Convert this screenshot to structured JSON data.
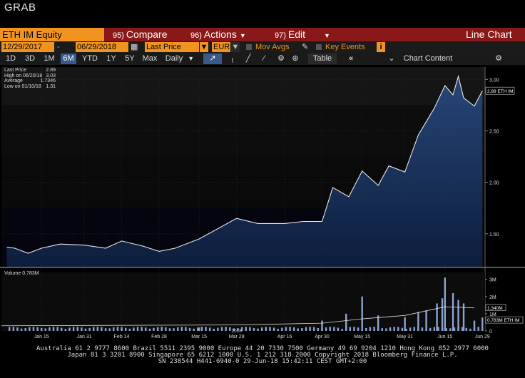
{
  "window": {
    "title": "GRAB"
  },
  "toolbar": {
    "ticker": "ETH IM Equity",
    "compare_num": "95)",
    "compare": "Compare",
    "actions_num": "96)",
    "actions": "Actions",
    "edit_num": "97)",
    "edit": "Edit",
    "chart_type": "Line Chart"
  },
  "settings": {
    "start_date": "12/29/2017",
    "end_date": "06/29/2018",
    "field": "Last Price",
    "currency": "EUR",
    "mov_avgs": "Mov Avgs",
    "key_events": "Key Events"
  },
  "period_buttons": [
    "1D",
    "3D",
    "1M",
    "6M",
    "YTD",
    "1Y",
    "5Y",
    "Max"
  ],
  "active_period": "6M",
  "frequency": "Daily",
  "table_label": "Table",
  "chart_content": "Chart Content",
  "legend": {
    "last_price_label": "Last Price",
    "last_price": "2.89",
    "high_label": "High on 06/20/18",
    "high": "3.03",
    "average_label": "Average",
    "average": "1.7346",
    "low_label": "Low on 01/10/18",
    "low": "1.31"
  },
  "volume_legend": "Volume 0.783M",
  "colors": {
    "accent_orange": "#f0941f",
    "menu_red": "#8b1818",
    "area_fill": "#1a3a6e",
    "active_button": "#3a5a8c"
  },
  "chart_data": {
    "type": "area",
    "price": {
      "x": [
        "Jan 2",
        "Jan 5",
        "Jan 10",
        "Jan 15",
        "Jan 22",
        "Jan 31",
        "Feb 8",
        "Feb 14",
        "Feb 22",
        "Feb 28",
        "Mar 6",
        "Mar 15",
        "Mar 22",
        "Mar 29",
        "Apr 6",
        "Apr 16",
        "Apr 23",
        "Apr 30",
        "May 4",
        "May 10",
        "May 15",
        "May 21",
        "May 25",
        "May 31",
        "Jun 5",
        "Jun 11",
        "Jun 15",
        "Jun 18",
        "Jun 20",
        "Jun 22",
        "Jun 26",
        "Jun 29"
      ],
      "y": [
        1.37,
        1.36,
        1.31,
        1.36,
        1.4,
        1.39,
        1.36,
        1.43,
        1.38,
        1.33,
        1.36,
        1.45,
        1.55,
        1.65,
        1.6,
        1.6,
        1.62,
        1.62,
        1.95,
        1.86,
        2.11,
        1.97,
        2.16,
        2.1,
        2.46,
        2.72,
        2.94,
        2.85,
        3.03,
        2.82,
        2.74,
        2.89
      ],
      "ylim": [
        1.31,
        3.03
      ],
      "y_ticks": [
        "1.50",
        "2.00",
        "2.50",
        "3.00"
      ],
      "last_label": "2.89 ETH IM"
    },
    "volume": {
      "x": [
        "Jan 15",
        "Feb 14",
        "Mar 15",
        "Apr 30",
        "May 9",
        "May 15",
        "May 21",
        "May 31",
        "Jun 5",
        "Jun 8",
        "Jun 12",
        "Jun 14",
        "Jun 15",
        "Jun 18",
        "Jun 20",
        "Jun 22",
        "Jun 26",
        "Jun 29"
      ],
      "y": [
        0.18,
        0.15,
        0.2,
        0.6,
        1.0,
        2.0,
        0.9,
        0.8,
        1.1,
        1.2,
        1.6,
        1.9,
        3.1,
        2.2,
        1.8,
        1.6,
        0.6,
        0.78
      ],
      "y_ticks": [
        "0",
        "1M",
        "2M",
        "3M"
      ],
      "avg_label": "1.340M",
      "last_label": "0.783M ETH IM"
    },
    "x_ticks": [
      "Jan 15",
      "Jan 31",
      "Feb 14",
      "Feb 28",
      "Mar 15",
      "Mar 29",
      "Apr 16",
      "Apr 30",
      "May 15",
      "May 31",
      "Jun 15",
      "Jun 29"
    ],
    "x_year": "2018"
  },
  "footer": {
    "line1": "Australia 61 2 9777 8600 Brazil 5511 2395 9000 Europe 44 20 7330 7500 Germany 49 69 9204 1210 Hong Kong 852 2977 6000",
    "line2": "Japan 81 3 3201 8900          Singapore 65 6212 1000          U.S. 1 212 318 2000                     Copyright 2018 Bloomberg Finance L.P.",
    "line3": "SN 238544 H441-6940-0 29-Jun-18 15:42:11 CEST GMT+2:00"
  }
}
